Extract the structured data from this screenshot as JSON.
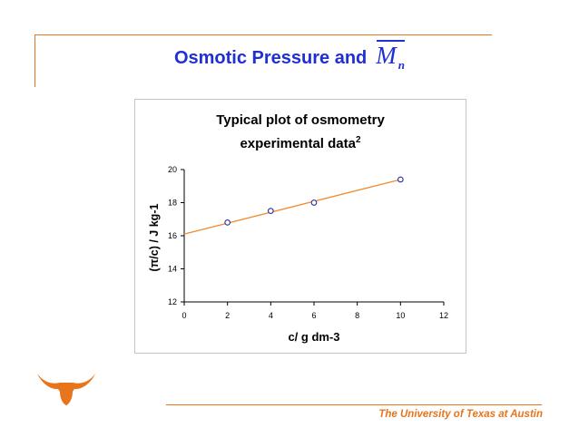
{
  "slide": {
    "title": "Osmotic Pressure and",
    "title_symbol": "M",
    "title_symbol_subscript": "n",
    "footer": "The University of Texas at Austin",
    "logo": "longhorn-logo",
    "accent_color": "#e8741c",
    "title_color": "#1f2fd6"
  },
  "chart_data": {
    "type": "scatter",
    "title": "Typical plot of osmometry experimental data",
    "title_line1": "Typical plot of osmometry",
    "title_line2": "experimental data",
    "title_superscript": "2",
    "xlabel": "c/ g dm-3",
    "ylabel": "(π/c) / J kg-1",
    "xlim": [
      0,
      12
    ],
    "ylim": [
      12,
      20
    ],
    "x_ticks": [
      "0",
      "2",
      "4",
      "6",
      "8",
      "10",
      "12"
    ],
    "y_ticks": [
      "12",
      "14",
      "16",
      "18",
      "20"
    ],
    "grid": false,
    "series": [
      {
        "marker": "open-circle",
        "color": "#2a2aa6",
        "x": [
          2,
          4,
          6,
          10
        ],
        "y": [
          16.8,
          17.5,
          18.0,
          19.4
        ]
      }
    ],
    "trendline": {
      "color": "#f28a30",
      "x": [
        0,
        10
      ],
      "y": [
        16.1,
        19.4
      ]
    }
  }
}
